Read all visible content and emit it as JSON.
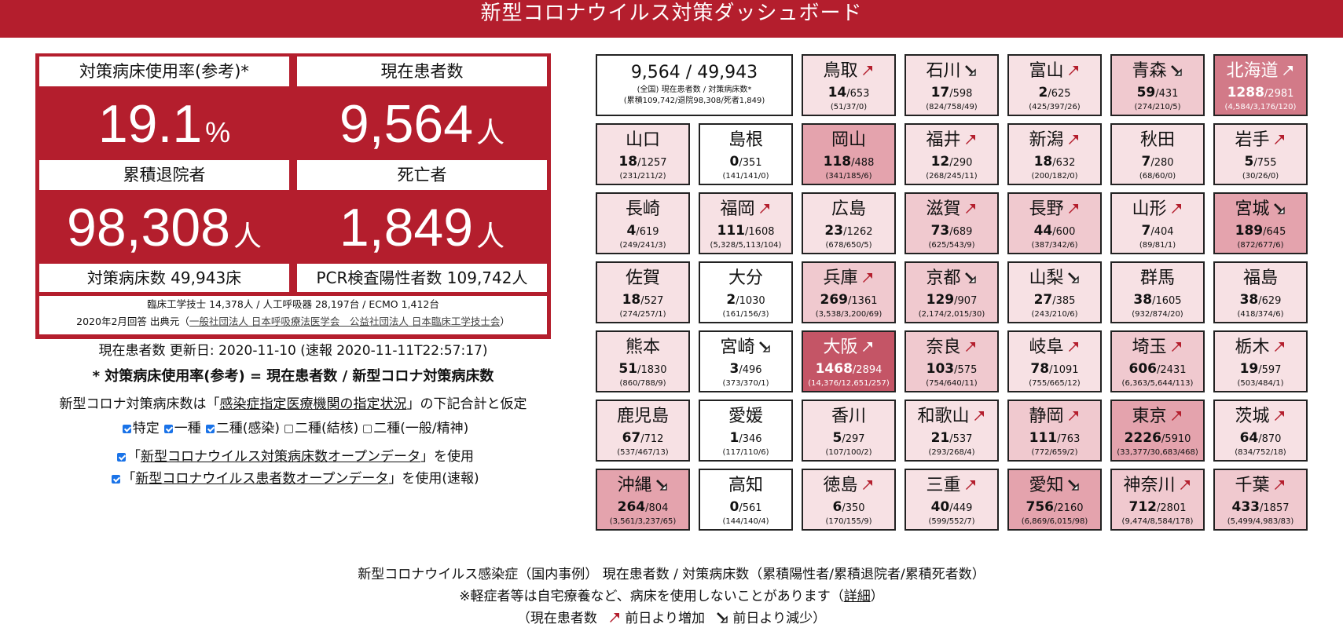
{
  "header": {
    "title": "新型コロナウイルス対策ダッシュボード"
  },
  "stats": {
    "usage_label": "対策病床使用率(参考)*",
    "usage_value": "19.1",
    "usage_unit": "%",
    "patients_label": "現在患者数",
    "patients_value": "9,564",
    "patients_unit": "人",
    "discharged_label": "累積退院者",
    "discharged_value": "98,308",
    "discharged_unit": "人",
    "deaths_label": "死亡者",
    "deaths_value": "1,849",
    "deaths_unit": "人",
    "beds_text": "対策病床数 49,943床",
    "pcr_text": "PCR検査陽性者数 109,742人",
    "source_line1": "臨床工学技士 14,378人 / 人工呼吸器 28,197台 / ECMO 1,412台",
    "source_line2_prefix": "2020年2月回答 出典元（",
    "source_link": "一般社団法人 日本呼吸療法医学会　公益社団法人 日本臨床工学技士会",
    "source_line2_suffix": "）"
  },
  "info": {
    "updated": "現在患者数 更新日: 2020-11-10 (速報 2020-11-11T22:57:17)",
    "formula": "* 対策病床使用率(参考) = 現在患者数 / 新型コロナ対策病床数",
    "assumption_prefix": "新型コロナ対策病床数は「",
    "assumption_link": "感染症指定医療機関の指定状況",
    "assumption_suffix": "」の下記合計と仮定",
    "checks": [
      {
        "label": "特定",
        "checked": true
      },
      {
        "label": "一種",
        "checked": true
      },
      {
        "label": "二種(感染)",
        "checked": true
      },
      {
        "label": "二種(結核)",
        "checked": false
      },
      {
        "label": "二種(一般/精神)",
        "checked": false
      }
    ],
    "opendata1_prefix": "「",
    "opendata1_link": "新型コロナウイルス対策病床数オープンデータ",
    "opendata1_suffix": "」を使用",
    "opendata2_prefix": "「",
    "opendata2_link": "新型コロナウイルス患者数オープンデータ",
    "opendata2_suffix": "」を使用(速報)"
  },
  "summary": {
    "main": "9,564 / 49,943",
    "sub1": "(全国) 現在患者数 / 対策病床数*",
    "sub2": "(累積109,742/退院98,308/死者1,849)"
  },
  "colors": {
    "brand": "#b41e2d",
    "l0": "#ffffff",
    "l1": "#f7e1e4",
    "l2": "#f0c9cf",
    "l3": "#e4a3ad",
    "l4": "#d27a88",
    "l5": "#c45566"
  },
  "prefectures": [
    {
      "name": "鳥取",
      "patients": "14",
      "beds": "/653",
      "detail": "(51/37/0)",
      "trend": "up",
      "level": 1,
      "col": 2,
      "row": 0
    },
    {
      "name": "石川",
      "patients": "17",
      "beds": "/598",
      "detail": "(824/758/49)",
      "trend": "down",
      "level": 1,
      "col": 3,
      "row": 0
    },
    {
      "name": "富山",
      "patients": "2",
      "beds": "/625",
      "detail": "(425/397/26)",
      "trend": "up",
      "level": 1,
      "col": 4,
      "row": 0
    },
    {
      "name": "青森",
      "patients": "59",
      "beds": "/431",
      "detail": "(274/210/5)",
      "trend": "down",
      "level": 2,
      "col": 5,
      "row": 0
    },
    {
      "name": "北海道",
      "patients": "1288",
      "beds": "/2981",
      "detail": "(4,584/3,176/120)",
      "trend": "up",
      "level": 4,
      "col": 6,
      "row": 0
    },
    {
      "name": "山口",
      "patients": "18",
      "beds": "/1257",
      "detail": "(231/211/2)",
      "trend": "none",
      "level": 1,
      "col": 0,
      "row": 1
    },
    {
      "name": "島根",
      "patients": "0",
      "beds": "/351",
      "detail": "(141/141/0)",
      "trend": "none",
      "level": 0,
      "col": 1,
      "row": 1
    },
    {
      "name": "岡山",
      "patients": "118",
      "beds": "/488",
      "detail": "(341/185/6)",
      "trend": "none",
      "level": 3,
      "col": 2,
      "row": 1
    },
    {
      "name": "福井",
      "patients": "12",
      "beds": "/290",
      "detail": "(268/245/11)",
      "trend": "up",
      "level": 1,
      "col": 3,
      "row": 1
    },
    {
      "name": "新潟",
      "patients": "18",
      "beds": "/632",
      "detail": "(200/182/0)",
      "trend": "up",
      "level": 1,
      "col": 4,
      "row": 1
    },
    {
      "name": "秋田",
      "patients": "7",
      "beds": "/280",
      "detail": "(68/60/0)",
      "trend": "none",
      "level": 1,
      "col": 5,
      "row": 1
    },
    {
      "name": "岩手",
      "patients": "5",
      "beds": "/755",
      "detail": "(30/26/0)",
      "trend": "up",
      "level": 1,
      "col": 6,
      "row": 1
    },
    {
      "name": "長崎",
      "patients": "4",
      "beds": "/619",
      "detail": "(249/241/3)",
      "trend": "none",
      "level": 1,
      "col": 0,
      "row": 2
    },
    {
      "name": "福岡",
      "patients": "111",
      "beds": "/1608",
      "detail": "(5,328/5,113/104)",
      "trend": "up",
      "level": 1,
      "col": 1,
      "row": 2
    },
    {
      "name": "広島",
      "patients": "23",
      "beds": "/1262",
      "detail": "(678/650/5)",
      "trend": "none",
      "level": 1,
      "col": 2,
      "row": 2
    },
    {
      "name": "滋賀",
      "patients": "73",
      "beds": "/689",
      "detail": "(625/543/9)",
      "trend": "up",
      "level": 2,
      "col": 3,
      "row": 2
    },
    {
      "name": "長野",
      "patients": "44",
      "beds": "/600",
      "detail": "(387/342/6)",
      "trend": "up",
      "level": 2,
      "col": 4,
      "row": 2
    },
    {
      "name": "山形",
      "patients": "7",
      "beds": "/404",
      "detail": "(89/81/1)",
      "trend": "up",
      "level": 1,
      "col": 5,
      "row": 2
    },
    {
      "name": "宮城",
      "patients": "189",
      "beds": "/645",
      "detail": "(872/677/6)",
      "trend": "down",
      "level": 3,
      "col": 6,
      "row": 2
    },
    {
      "name": "佐賀",
      "patients": "18",
      "beds": "/527",
      "detail": "(274/257/1)",
      "trend": "none",
      "level": 1,
      "col": 0,
      "row": 3
    },
    {
      "name": "大分",
      "patients": "2",
      "beds": "/1030",
      "detail": "(161/156/3)",
      "trend": "none",
      "level": 0,
      "col": 1,
      "row": 3
    },
    {
      "name": "兵庫",
      "patients": "269",
      "beds": "/1361",
      "detail": "(3,538/3,200/69)",
      "trend": "up",
      "level": 2,
      "col": 2,
      "row": 3
    },
    {
      "name": "京都",
      "patients": "129",
      "beds": "/907",
      "detail": "(2,174/2,015/30)",
      "trend": "down",
      "level": 2,
      "col": 3,
      "row": 3
    },
    {
      "name": "山梨",
      "patients": "27",
      "beds": "/385",
      "detail": "(243/210/6)",
      "trend": "down",
      "level": 1,
      "col": 4,
      "row": 3
    },
    {
      "name": "群馬",
      "patients": "38",
      "beds": "/1605",
      "detail": "(932/874/20)",
      "trend": "none",
      "level": 1,
      "col": 5,
      "row": 3
    },
    {
      "name": "福島",
      "patients": "38",
      "beds": "/629",
      "detail": "(418/374/6)",
      "trend": "none",
      "level": 1,
      "col": 6,
      "row": 3
    },
    {
      "name": "熊本",
      "patients": "51",
      "beds": "/1830",
      "detail": "(860/788/9)",
      "trend": "none",
      "level": 1,
      "col": 0,
      "row": 4
    },
    {
      "name": "宮崎",
      "patients": "3",
      "beds": "/496",
      "detail": "(373/370/1)",
      "trend": "down",
      "level": 0,
      "col": 1,
      "row": 4
    },
    {
      "name": "大阪",
      "patients": "1468",
      "beds": "/2894",
      "detail": "(14,376/12,651/257)",
      "trend": "up",
      "level": 5,
      "col": 2,
      "row": 4
    },
    {
      "name": "奈良",
      "patients": "103",
      "beds": "/575",
      "detail": "(754/640/11)",
      "trend": "up",
      "level": 2,
      "col": 3,
      "row": 4
    },
    {
      "name": "岐阜",
      "patients": "78",
      "beds": "/1091",
      "detail": "(755/665/12)",
      "trend": "up",
      "level": 1,
      "col": 4,
      "row": 4
    },
    {
      "name": "埼玉",
      "patients": "606",
      "beds": "/2431",
      "detail": "(6,363/5,644/113)",
      "trend": "up",
      "level": 2,
      "col": 5,
      "row": 4
    },
    {
      "name": "栃木",
      "patients": "19",
      "beds": "/597",
      "detail": "(503/484/1)",
      "trend": "up",
      "level": 1,
      "col": 6,
      "row": 4
    },
    {
      "name": "鹿児島",
      "patients": "67",
      "beds": "/712",
      "detail": "(537/467/13)",
      "trend": "none",
      "level": 1,
      "col": 0,
      "row": 5
    },
    {
      "name": "愛媛",
      "patients": "1",
      "beds": "/346",
      "detail": "(117/110/6)",
      "trend": "none",
      "level": 0,
      "col": 1,
      "row": 5
    },
    {
      "name": "香川",
      "patients": "5",
      "beds": "/297",
      "detail": "(107/100/2)",
      "trend": "none",
      "level": 1,
      "col": 2,
      "row": 5
    },
    {
      "name": "和歌山",
      "patients": "21",
      "beds": "/537",
      "detail": "(293/268/4)",
      "trend": "up",
      "level": 1,
      "col": 3,
      "row": 5
    },
    {
      "name": "静岡",
      "patients": "111",
      "beds": "/763",
      "detail": "(772/659/2)",
      "trend": "up",
      "level": 2,
      "col": 4,
      "row": 5
    },
    {
      "name": "東京",
      "patients": "2226",
      "beds": "/5910",
      "detail": "(33,377/30,683/468)",
      "trend": "up",
      "level": 3,
      "col": 5,
      "row": 5
    },
    {
      "name": "茨城",
      "patients": "64",
      "beds": "/870",
      "detail": "(834/752/18)",
      "trend": "up",
      "level": 1,
      "col": 6,
      "row": 5
    },
    {
      "name": "沖縄",
      "patients": "264",
      "beds": "/804",
      "detail": "(3,561/3,237/65)",
      "trend": "down",
      "level": 3,
      "col": 0,
      "row": 6
    },
    {
      "name": "高知",
      "patients": "0",
      "beds": "/561",
      "detail": "(144/140/4)",
      "trend": "none",
      "level": 0,
      "col": 1,
      "row": 6
    },
    {
      "name": "徳島",
      "patients": "6",
      "beds": "/350",
      "detail": "(170/155/9)",
      "trend": "up",
      "level": 1,
      "col": 2,
      "row": 6
    },
    {
      "name": "三重",
      "patients": "40",
      "beds": "/449",
      "detail": "(599/552/7)",
      "trend": "up",
      "level": 1,
      "col": 3,
      "row": 6
    },
    {
      "name": "愛知",
      "patients": "756",
      "beds": "/2160",
      "detail": "(6,869/6,015/98)",
      "trend": "down",
      "level": 3,
      "col": 4,
      "row": 6
    },
    {
      "name": "神奈川",
      "patients": "712",
      "beds": "/2801",
      "detail": "(9,474/8,584/178)",
      "trend": "up",
      "level": 2,
      "col": 5,
      "row": 6
    },
    {
      "name": "千葉",
      "patients": "433",
      "beds": "/1857",
      "detail": "(5,499/4,983/83)",
      "trend": "up",
      "level": 2,
      "col": 6,
      "row": 6
    }
  ],
  "footer": {
    "line1": "新型コロナウイルス感染症（国内事例） 現在患者数 / 対策病床数（累積陽性者/累積退院者/累積死者数）",
    "line2_prefix": "※軽症者等は自宅療養など、病床を使用しないことがあります（",
    "line2_link": "詳細",
    "line2_suffix": "）",
    "legend_prefix": "（現在患者数",
    "legend_up": "前日より増加",
    "legend_down": "前日より減少",
    "legend_suffix": "）"
  }
}
